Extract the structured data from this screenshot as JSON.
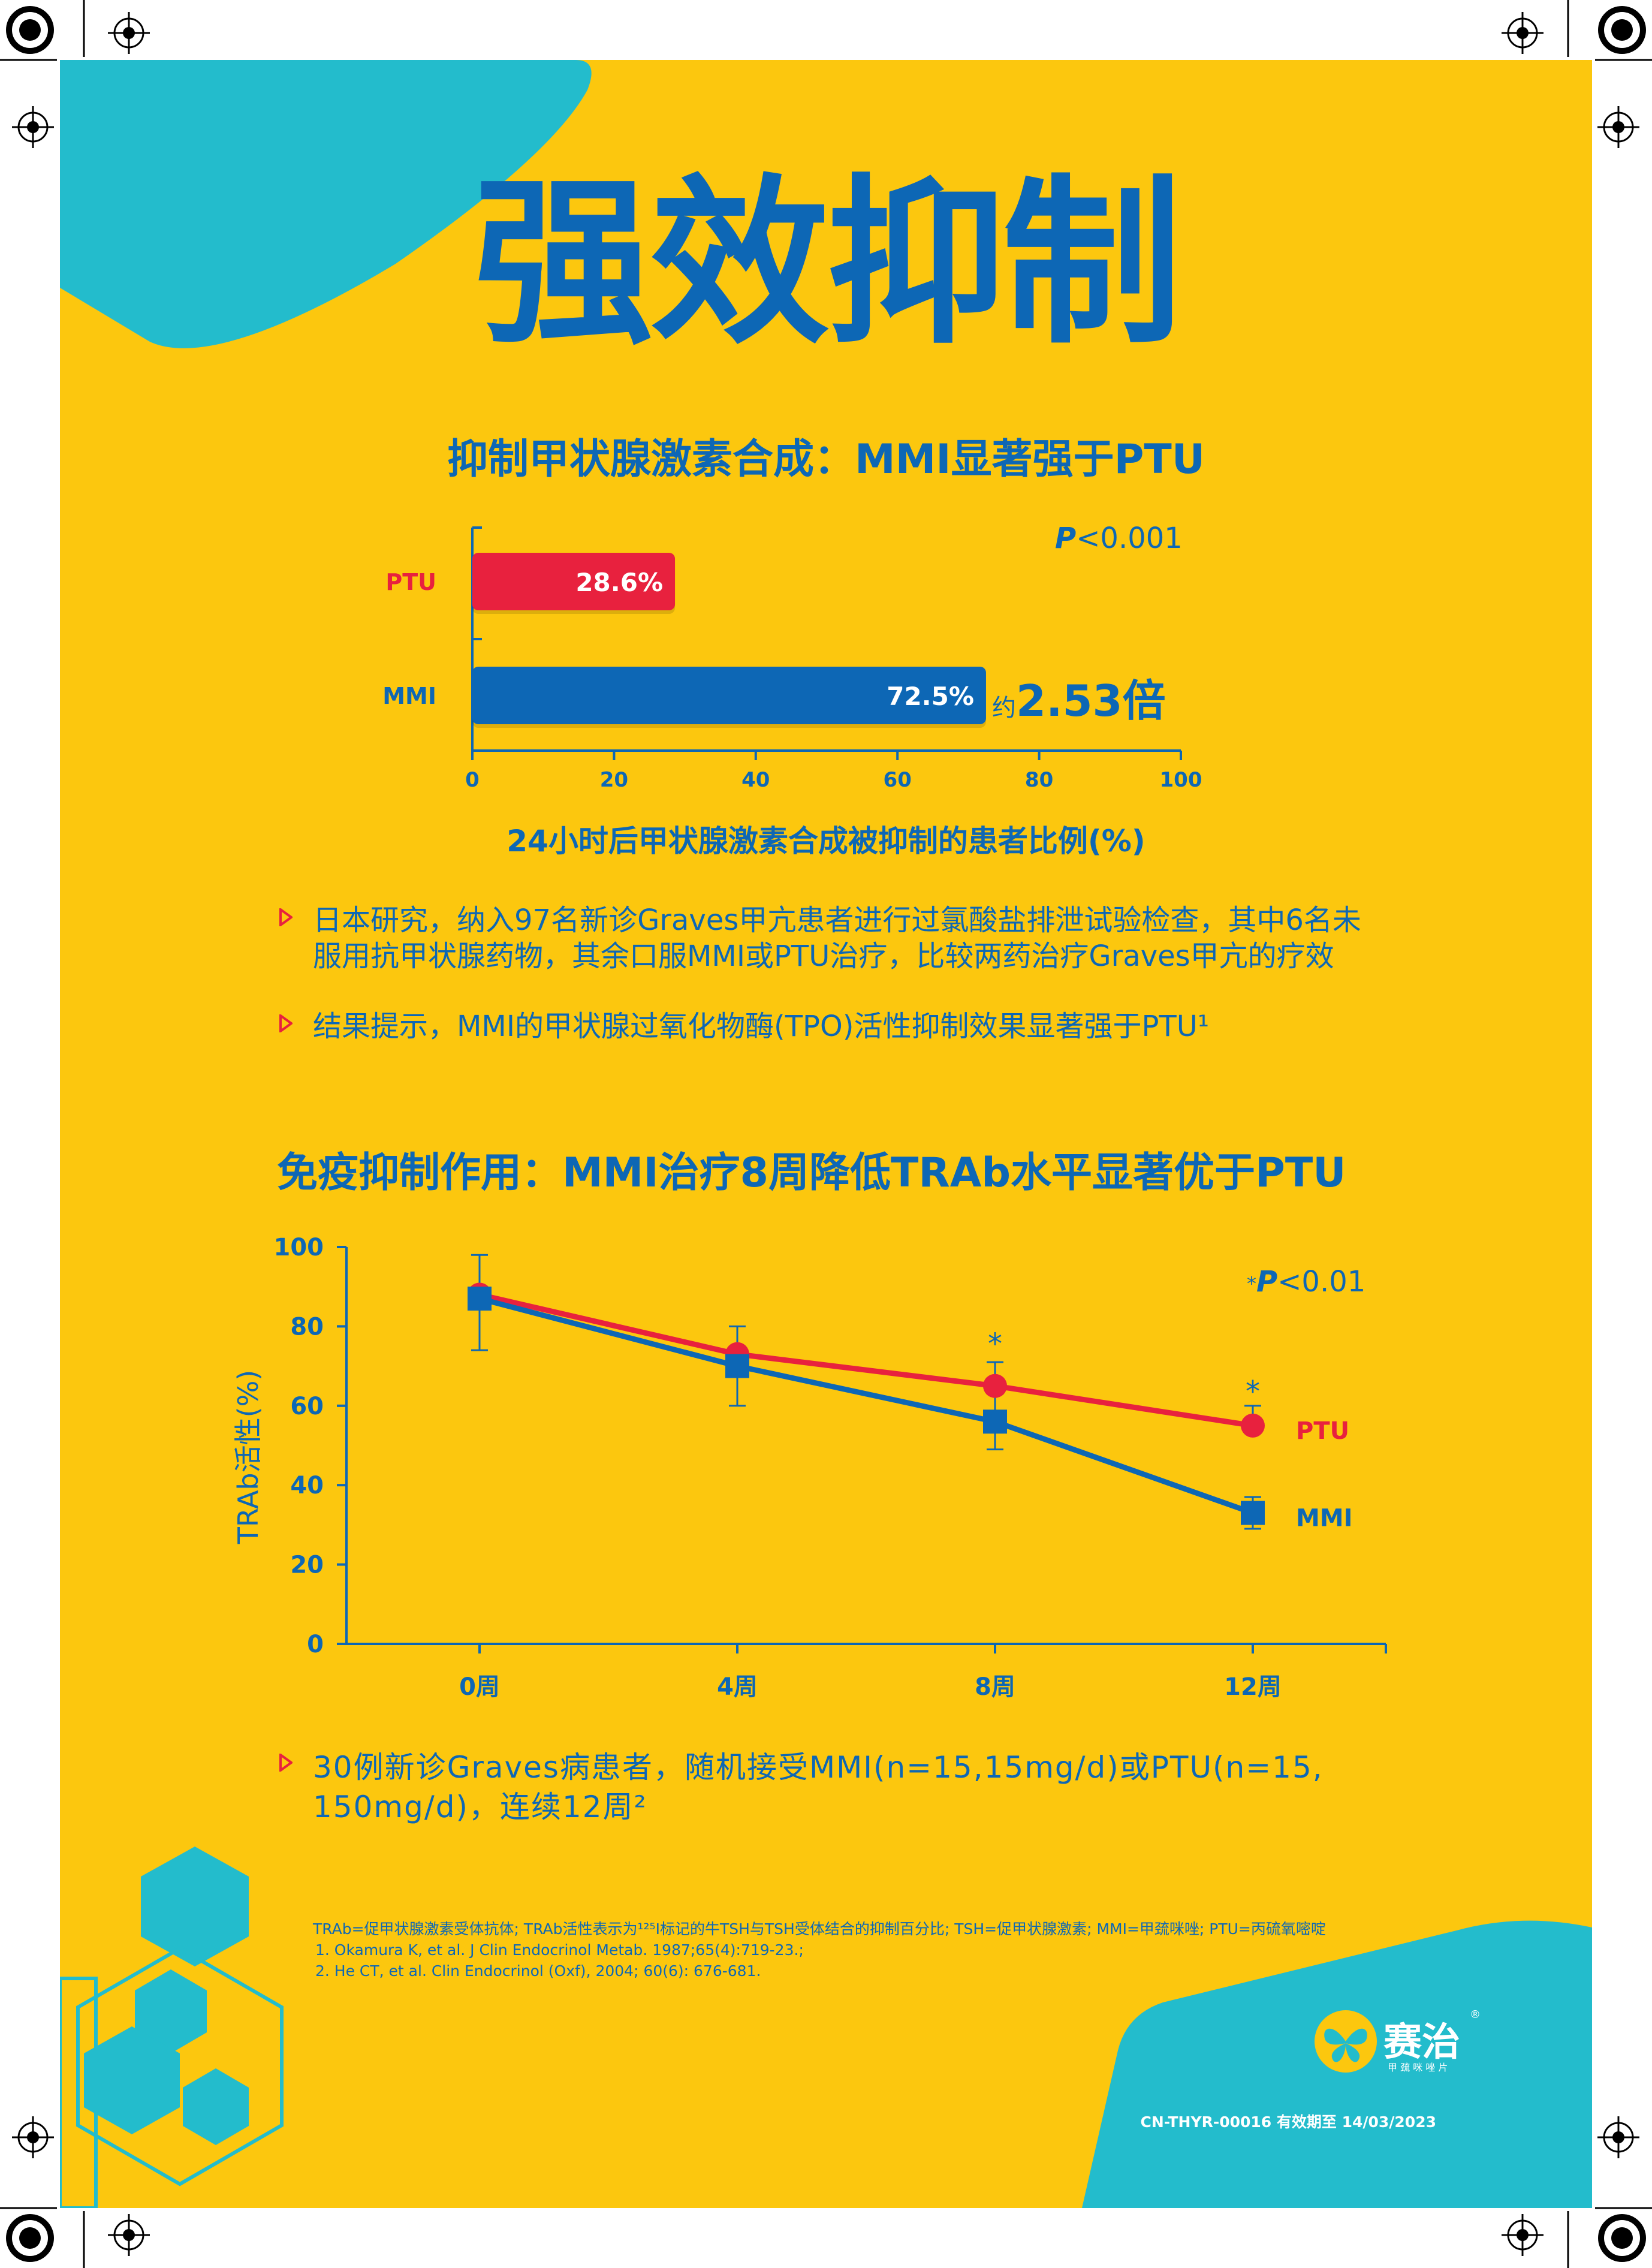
{
  "title": "强效抑制",
  "section1": {
    "heading": "抑制甲状腺激素合成：MMI显著强于PTU",
    "p_value": "<0.001",
    "p_letter": "P",
    "ratio_prefix": "约",
    "ratio_value": "2.53倍",
    "bullets": [
      "日本研究，纳入97名新诊Graves甲亢患者进行过氯酸盐排泄试验检查，其中6名未",
      "服用抗甲状腺药物，其余口服MMI或PTU治疗，比较两药治疗Graves甲亢的疗效",
      "结果提示，MMI的甲状腺过氧化物酶(TPO)活性抑制效果显著强于PTU¹"
    ]
  },
  "section2": {
    "heading": "免疫抑制作用：MMI治疗8周降低TRAb水平显著优于PTU",
    "p_value": "<0.01",
    "p_letter": "P",
    "p_star": "*",
    "bullets": [
      "30例新诊Graves病患者，随机接受MMI(n=15,15mg/d)或PTU(n=15,",
      "150mg/d)，连续12周²"
    ]
  },
  "chart_data": [
    {
      "type": "bar",
      "orientation": "horizontal",
      "categories": [
        "PTU",
        "MMI"
      ],
      "values": [
        28.6,
        72.5
      ],
      "value_labels": [
        "28.6%",
        "72.5%"
      ],
      "colors": [
        "#e8213e",
        "#0d67b5"
      ],
      "xlim": [
        0,
        100
      ],
      "xticks": [
        "0",
        "20",
        "40",
        "60",
        "80",
        "100"
      ],
      "xlabel": "24小时后甲状腺激素合成被抑制的患者比例(%)"
    },
    {
      "type": "line",
      "categories": [
        "0周",
        "4周",
        "8周",
        "12周"
      ],
      "ylabel": "TRAb活性(%)",
      "ylim": [
        0,
        100
      ],
      "yticks": [
        "0",
        "20",
        "40",
        "60",
        "80",
        "100"
      ],
      "series": [
        {
          "name": "PTU",
          "color": "#e8213e",
          "marker": "circle",
          "values": [
            88,
            73,
            65,
            55
          ]
        },
        {
          "name": "MMI",
          "color": "#0d67b5",
          "marker": "square",
          "values": [
            87,
            70,
            56,
            33
          ],
          "error_bars": [
            [
              74,
              98
            ],
            [
              60,
              80
            ],
            [
              49,
              63
            ],
            [
              29,
              37
            ]
          ]
        }
      ],
      "significance": [
        "",
        "",
        "*",
        "*"
      ],
      "ptu_error_bars": [
        [
          null,
          null
        ],
        [
          null,
          null
        ],
        [
          null,
          71
        ],
        [
          null,
          60
        ]
      ]
    }
  ],
  "footnotes": [
    "TRAb=促甲状腺激素受体抗体; TRAb活性表示为¹²⁵I标记的牛TSH与TSH受体结合的抑制百分比; TSH=促甲状腺激素; MMI=甲巯咪唑; PTU=丙硫氧嘧啶",
    "1. Okamura K, et al. J Clin Endocrinol Metab. 1987;65(4):719-23.;",
    "2. He CT, et al.  Clin Endocrinol (Oxf), 2004; 60(6): 676-681."
  ],
  "logo": {
    "name": "赛治",
    "sub": "甲 巯 咪 唑 片",
    "reg": "®"
  },
  "code": "CN-THYR-00016 有效期至 14/03/2023",
  "colors": {
    "background": "#fcc70e",
    "blue": "#0d67b5",
    "red": "#e8213e",
    "teal": "#23bccc"
  }
}
